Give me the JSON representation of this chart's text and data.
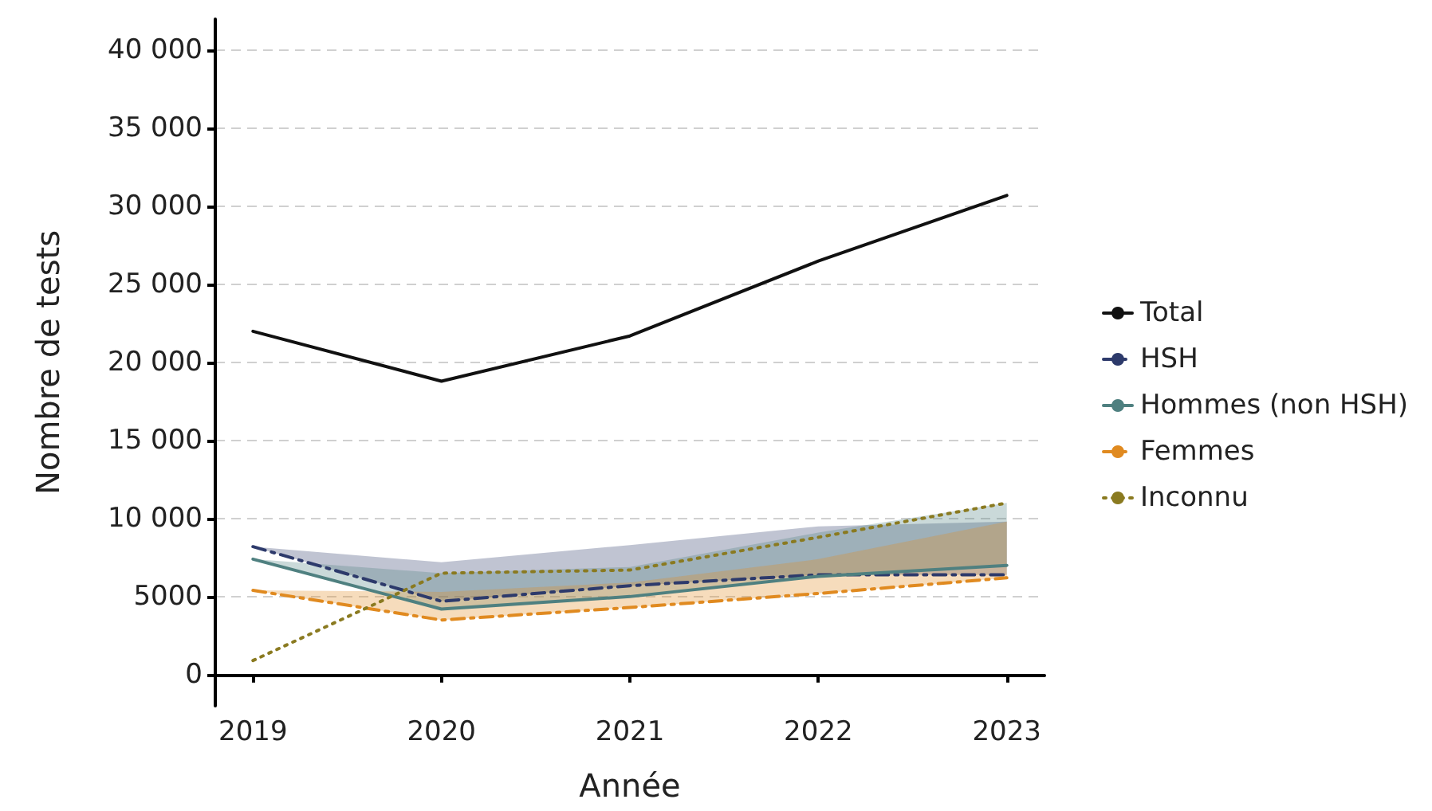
{
  "chart_data": {
    "type": "line",
    "xlabel": "Année",
    "ylabel": "Nombre de tests",
    "x": [
      2019,
      2020,
      2021,
      2022,
      2023
    ],
    "xlim": [
      2018.8,
      2023.2
    ],
    "xticks": [
      2019,
      2020,
      2021,
      2022,
      2023
    ],
    "ylim": [
      -2000,
      42000
    ],
    "yticks": [
      {
        "value": 0,
        "label": "0"
      },
      {
        "value": 5000,
        "label": "5000"
      },
      {
        "value": 10000,
        "label": "10 000"
      },
      {
        "value": 15000,
        "label": "15 000"
      },
      {
        "value": 20000,
        "label": "20 000"
      },
      {
        "value": 25000,
        "label": "25 000"
      },
      {
        "value": 30000,
        "label": "30 000"
      },
      {
        "value": 35000,
        "label": "35 000"
      },
      {
        "value": 40000,
        "label": "40 000"
      }
    ],
    "grid": "y",
    "legend": "right",
    "marker": "none",
    "series": [
      {
        "name": "Total",
        "color": "#111111",
        "line_style": "solid",
        "values": [
          22000,
          18800,
          21700,
          26500,
          30700
        ]
      },
      {
        "name": "HSH",
        "color": "#2d3a6b",
        "line_style": "dashed",
        "values": [
          8200,
          4700,
          5700,
          6400,
          6400
        ],
        "lower": [
          8200,
          4700,
          5700,
          6400,
          6400
        ],
        "upper": [
          8200,
          7200,
          8300,
          9500,
          9800
        ]
      },
      {
        "name": "Hommes (non HSH)",
        "color": "#4f8080",
        "line_style": "solid",
        "values": [
          7400,
          4200,
          5000,
          6300,
          7000
        ],
        "lower": [
          7400,
          4200,
          5000,
          6300,
          7000
        ],
        "upper": [
          7400,
          6500,
          6900,
          9100,
          11000
        ]
      },
      {
        "name": "Femmes",
        "color": "#e08a20",
        "line_style": "dashed",
        "values": [
          5400,
          3500,
          4300,
          5200,
          6200
        ],
        "lower": [
          5400,
          3500,
          4300,
          5200,
          6200
        ],
        "upper": [
          5400,
          5300,
          5900,
          7400,
          9800
        ]
      },
      {
        "name": "Inconnu",
        "color": "#8a7a20",
        "line_style": "dotted",
        "values": [
          900,
          6500,
          6700,
          8800,
          11000
        ]
      }
    ]
  }
}
